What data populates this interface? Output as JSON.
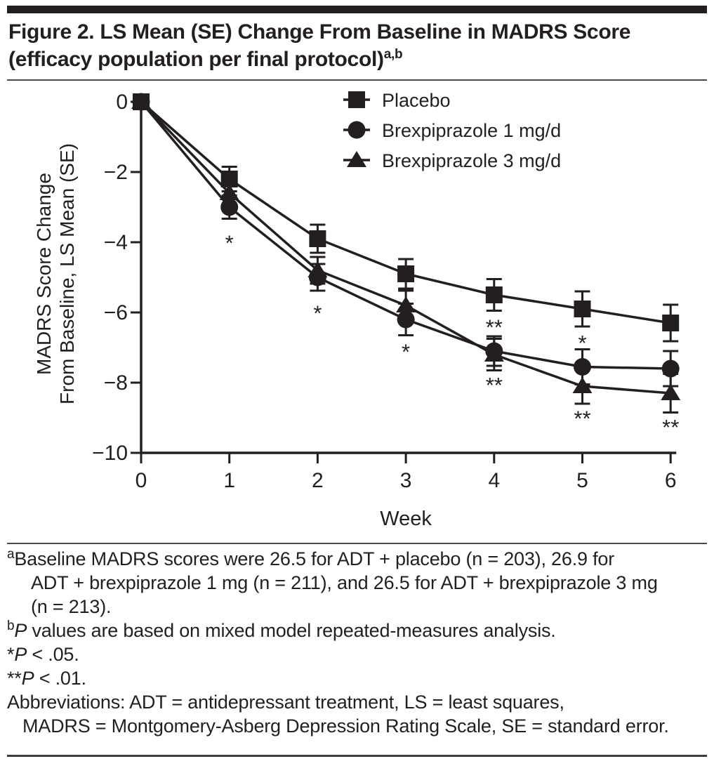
{
  "figure": {
    "title_lines": [
      "Figure 2. LS Mean (SE) Change From Baseline in MADRS Score",
      "(efficacy population per final protocol)"
    ],
    "title_superscript": "a,b",
    "ink_color": "#231f20"
  },
  "chart_data": {
    "type": "line",
    "x": [
      0,
      1,
      2,
      3,
      4,
      5,
      6
    ],
    "xlabel": "Week",
    "xtick_labels": [
      "0",
      "1",
      "2",
      "3",
      "4",
      "5",
      "6"
    ],
    "ylabel_lines": [
      "MADRS Score Change",
      "From Baseline, LS Mean (SE)"
    ],
    "ylim": [
      -10,
      0
    ],
    "yticks": [
      0,
      -2,
      -4,
      -6,
      -8,
      -10
    ],
    "ytick_labels": [
      "0",
      "−2",
      "−4",
      "−6",
      "−8",
      "−10"
    ],
    "grid": false,
    "legend_position": "top-center-inside",
    "series": [
      {
        "name": "Placebo",
        "marker": "square",
        "color": "#231f20",
        "values": [
          0,
          -2.2,
          -3.9,
          -4.9,
          -5.5,
          -5.9,
          -6.3
        ],
        "se": [
          0,
          0.35,
          0.4,
          0.42,
          0.45,
          0.5,
          0.52
        ]
      },
      {
        "name": "Brexpiprazole 1 mg/d",
        "marker": "circle",
        "color": "#231f20",
        "values": [
          0,
          -3.0,
          -5.0,
          -6.2,
          -7.1,
          -7.55,
          -7.6
        ],
        "se": [
          0,
          0.33,
          0.38,
          0.45,
          0.42,
          0.5,
          0.5
        ]
      },
      {
        "name": "Brexpiprazole 3 mg/d",
        "marker": "triangle",
        "color": "#231f20",
        "values": [
          0,
          -2.6,
          -4.8,
          -5.8,
          -7.2,
          -8.1,
          -8.3
        ],
        "se": [
          0,
          0.3,
          0.38,
          0.42,
          0.45,
          0.5,
          0.55
        ]
      }
    ],
    "annotations": [
      {
        "week": 1,
        "value": -3.95,
        "text": "*"
      },
      {
        "week": 2,
        "value": -5.95,
        "text": "*"
      },
      {
        "week": 3,
        "value": -7.05,
        "text": "*"
      },
      {
        "week": 4,
        "value": -6.35,
        "text": "**"
      },
      {
        "week": 4,
        "value": -8.0,
        "text": "**"
      },
      {
        "week": 5,
        "value": -6.8,
        "text": "*"
      },
      {
        "week": 5,
        "value": -8.95,
        "text": "**"
      },
      {
        "week": 6,
        "value": -9.2,
        "text": "**"
      }
    ]
  },
  "footnotes": {
    "a": {
      "marker": "a",
      "lines": [
        "Baseline MADRS scores were 26.5 for ADT + placebo (n = 203), 26.9 for",
        "ADT + brexpiprazole 1 mg (n = 211), and 26.5 for ADT + brexpiprazole 3 mg",
        "(n = 213)."
      ]
    },
    "b": {
      "marker": "b",
      "italic": "P",
      "text": " values are based on mixed model repeated-measures analysis."
    },
    "sig1": {
      "stars": "*",
      "italic": "P",
      "text": " < .05."
    },
    "sig2": {
      "stars": "**",
      "italic": "P",
      "text": " < .01."
    },
    "abbrev": {
      "lines": [
        "Abbreviations: ADT = antidepressant treatment, LS = least squares,",
        "MADRS = Montgomery-Asberg Depression Rating Scale, SE = standard error."
      ]
    }
  }
}
